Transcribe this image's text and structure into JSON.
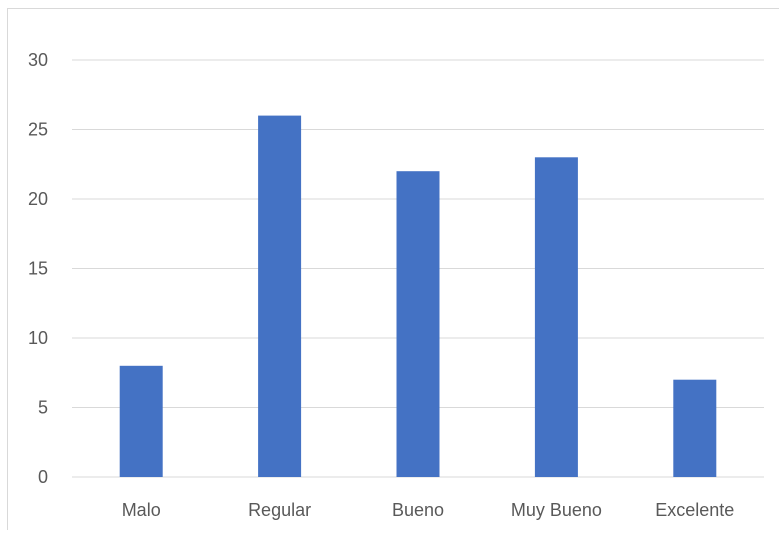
{
  "chart_data": {
    "type": "bar",
    "categories": [
      "Malo",
      "Regular",
      "Bueno",
      "Muy Bueno",
      "Excelente"
    ],
    "values": [
      8,
      26,
      22,
      23,
      7
    ],
    "title": "",
    "xlabel": "",
    "ylabel": "",
    "ylim": [
      0,
      30
    ],
    "yticks": [
      "0",
      "5",
      "10",
      "15",
      "20",
      "25",
      "30"
    ],
    "grid": true,
    "legend": "none",
    "bar_color": "#4472c4",
    "grid_color": "#d9d9d9",
    "text_color": "#595959"
  }
}
